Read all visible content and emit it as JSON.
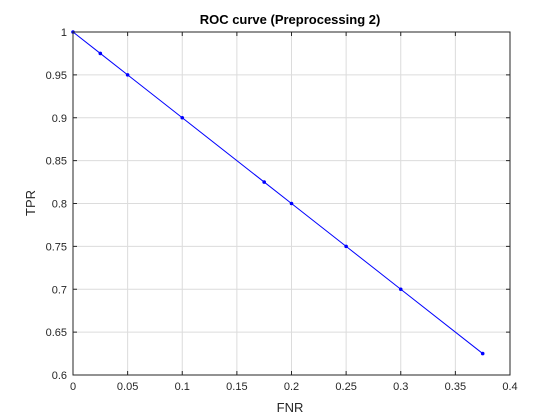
{
  "chart_data": {
    "type": "line",
    "title": "ROC curve (Preprocessing 2)",
    "xlabel": "FNR",
    "ylabel": "TPR",
    "xlim": [
      0,
      0.4
    ],
    "ylim": [
      0.6,
      1
    ],
    "xticks": [
      0,
      0.05,
      0.1,
      0.15,
      0.2,
      0.25,
      0.3,
      0.35,
      0.4
    ],
    "yticks": [
      0.6,
      0.65,
      0.7,
      0.75,
      0.8,
      0.85,
      0.9,
      0.95,
      1
    ],
    "xtick_labels": [
      "0",
      "0.05",
      "0.1",
      "0.15",
      "0.2",
      "0.25",
      "0.3",
      "0.35",
      "0.4"
    ],
    "ytick_labels": [
      "0.6",
      "0.65",
      "0.7",
      "0.75",
      "0.8",
      "0.85",
      "0.9",
      "0.95",
      "1"
    ],
    "grid": true,
    "series": [
      {
        "color": "#0000ff",
        "marker": "dot",
        "x": [
          0,
          0.025,
          0.05,
          0.1,
          0.175,
          0.2,
          0.25,
          0.3,
          0.375
        ],
        "y": [
          1,
          0.975,
          0.95,
          0.9,
          0.825,
          0.8,
          0.75,
          0.7,
          0.625
        ]
      }
    ]
  }
}
